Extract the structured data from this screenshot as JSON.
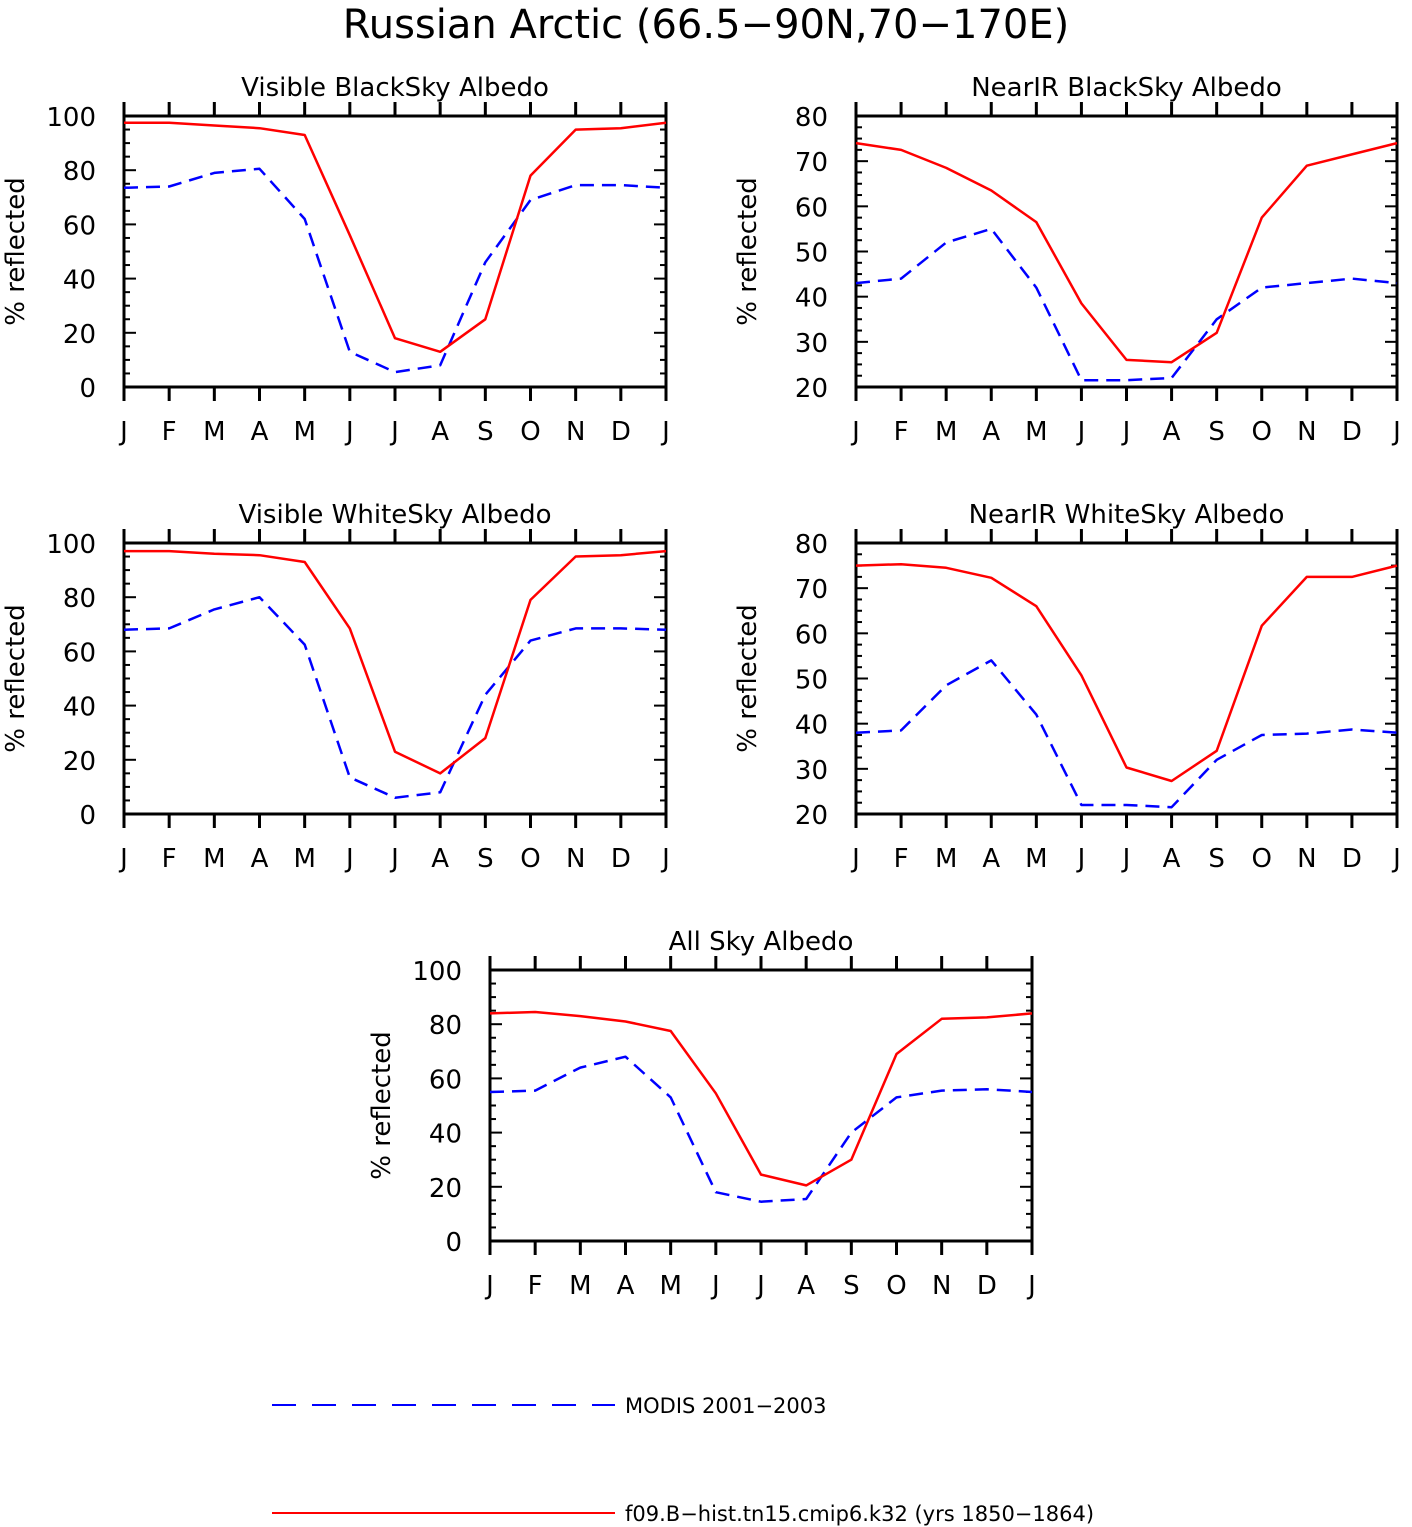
{
  "figure": {
    "title": "Russian Arctic (66.5−90N,70−170E)"
  },
  "series_styles": {
    "modis": {
      "color": "#0000ff",
      "dash": "dashed"
    },
    "model": {
      "color": "#ff0000",
      "dash": "solid"
    }
  },
  "chart_data": [
    {
      "type": "line",
      "title": "Visible BlackSky Albedo",
      "xlabel": "",
      "ylabel": "% reflected",
      "categories": [
        "J",
        "F",
        "M",
        "A",
        "M",
        "J",
        "J",
        "A",
        "S",
        "O",
        "N",
        "D",
        "J"
      ],
      "ylim": [
        0,
        100
      ],
      "yticks": [
        0,
        20,
        40,
        60,
        80,
        100
      ],
      "series": [
        {
          "name": "MODIS 2001−2003",
          "values": [
            73.5,
            74,
            79,
            80.5,
            62,
            13,
            5.5,
            8,
            46,
            69,
            74.5,
            74.5,
            73.5
          ]
        },
        {
          "name": "f09.B−hist.tn15.cmip6.k32 (yrs 1850−1864)",
          "values": [
            97.5,
            97.5,
            96.5,
            95.5,
            93,
            56,
            18,
            13,
            25,
            78,
            95,
            95.5,
            97.5
          ]
        }
      ]
    },
    {
      "type": "line",
      "title": "NearIR BlackSky Albedo",
      "xlabel": "",
      "ylabel": "% reflected",
      "categories": [
        "J",
        "F",
        "M",
        "A",
        "M",
        "J",
        "J",
        "A",
        "S",
        "O",
        "N",
        "D",
        "J"
      ],
      "ylim": [
        20,
        80
      ],
      "yticks": [
        20,
        30,
        40,
        50,
        60,
        70,
        80
      ],
      "series": [
        {
          "name": "MODIS 2001−2003",
          "values": [
            43,
            44,
            52,
            55,
            42,
            21.5,
            21.5,
            22,
            35,
            42,
            43,
            44,
            43
          ]
        },
        {
          "name": "f09.B−hist.tn15.cmip6.k32 (yrs 1850−1864)",
          "values": [
            74,
            72.5,
            68.5,
            63.5,
            56.5,
            38.5,
            26,
            25.5,
            32,
            57.5,
            69,
            71.5,
            74
          ]
        }
      ]
    },
    {
      "type": "line",
      "title": "Visible WhiteSky Albedo",
      "xlabel": "",
      "ylabel": "% reflected",
      "categories": [
        "J",
        "F",
        "M",
        "A",
        "M",
        "J",
        "J",
        "A",
        "S",
        "O",
        "N",
        "D",
        "J"
      ],
      "ylim": [
        0,
        100
      ],
      "yticks": [
        0,
        20,
        40,
        60,
        80,
        100
      ],
      "series": [
        {
          "name": "MODIS 2001−2003",
          "values": [
            68,
            68.5,
            75.5,
            80,
            62.5,
            13.5,
            6,
            8,
            44,
            64,
            68.5,
            68.5,
            68
          ]
        },
        {
          "name": "f09.B−hist.tn15.cmip6.k32 (yrs 1850−1864)",
          "values": [
            97,
            97,
            96,
            95.5,
            93,
            68.5,
            23,
            15,
            28,
            79,
            95,
            95.5,
            97
          ]
        }
      ]
    },
    {
      "type": "line",
      "title": "NearIR WhiteSky Albedo",
      "xlabel": "",
      "ylabel": "% reflected",
      "categories": [
        "J",
        "F",
        "M",
        "A",
        "M",
        "J",
        "J",
        "A",
        "S",
        "O",
        "N",
        "D",
        "J"
      ],
      "ylim": [
        20,
        80
      ],
      "yticks": [
        20,
        30,
        40,
        50,
        60,
        70,
        80
      ],
      "series": [
        {
          "name": "MODIS 2001−2003",
          "values": [
            38,
            38.5,
            48.5,
            54,
            42,
            22,
            22,
            21.5,
            32,
            37.5,
            37.8,
            38.7,
            38
          ]
        },
        {
          "name": "f09.B−hist.tn15.cmip6.k32 (yrs 1850−1864)",
          "values": [
            75,
            75.3,
            74.5,
            72.3,
            66,
            50.7,
            30.3,
            27.3,
            34,
            61.7,
            72.5,
            72.5,
            75
          ]
        }
      ]
    },
    {
      "type": "line",
      "title": "All Sky Albedo",
      "xlabel": "",
      "ylabel": "% reflected",
      "categories": [
        "J",
        "F",
        "M",
        "A",
        "M",
        "J",
        "J",
        "A",
        "S",
        "O",
        "N",
        "D",
        "J"
      ],
      "ylim": [
        0,
        100
      ],
      "yticks": [
        0,
        20,
        40,
        60,
        80,
        100
      ],
      "series": [
        {
          "name": "MODIS 2001−2003",
          "values": [
            55,
            55.5,
            64,
            68,
            53,
            18,
            14.5,
            15.5,
            40,
            53,
            55.5,
            56,
            55
          ]
        },
        {
          "name": "f09.B−hist.tn15.cmip6.k32 (yrs 1850−1864)",
          "values": [
            84,
            84.5,
            83,
            81,
            77.5,
            54.5,
            24.5,
            20.5,
            30,
            69,
            82,
            82.5,
            84
          ]
        }
      ]
    }
  ],
  "legend": {
    "placement": "bottom",
    "items": [
      {
        "label": "MODIS 2001−2003",
        "style": "modis"
      },
      {
        "label": "f09.B−hist.tn15.cmip6.k32 (yrs 1850−1864)",
        "style": "model"
      }
    ]
  }
}
